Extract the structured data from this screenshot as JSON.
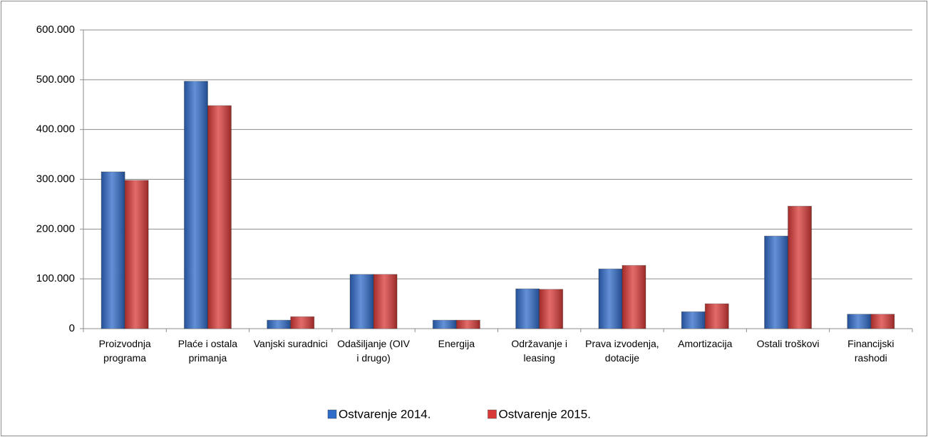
{
  "chart_data": {
    "type": "bar",
    "categories": [
      "Proizvodnja programa",
      "Plaće i ostala primanja",
      "Vanjski suradnici",
      "Odašiljanje (OIV i drugo)",
      "Energija",
      "Održavanje i leasing",
      "Prava izvodenja, dotacije",
      "Amortizacija",
      "Ostali troškovi",
      "Financijski rashodi"
    ],
    "series": [
      {
        "name": "Ostvarenje 2014.",
        "color": "#2f6bc9",
        "values": [
          315000,
          497000,
          17000,
          109000,
          17000,
          80000,
          120000,
          34000,
          186000,
          29000
        ]
      },
      {
        "name": "Ostvarenje 2015.",
        "color": "#d93a37",
        "values": [
          298000,
          448000,
          24000,
          109000,
          17000,
          79000,
          127000,
          50000,
          246000,
          29000
        ]
      }
    ],
    "ylim": [
      0,
      600000
    ],
    "yticks": [
      0,
      {
        "value": 100000,
        "label": "100.000"
      },
      {
        "value": 200000,
        "label": "200.000"
      },
      {
        "value": 300000,
        "label": "300.000"
      },
      {
        "value": 400000,
        "label": "400.000"
      },
      {
        "value": 500000,
        "label": "500.000"
      },
      {
        "value": 600000,
        "label": "600.000"
      }
    ],
    "grid": true,
    "legend": "bottom"
  }
}
